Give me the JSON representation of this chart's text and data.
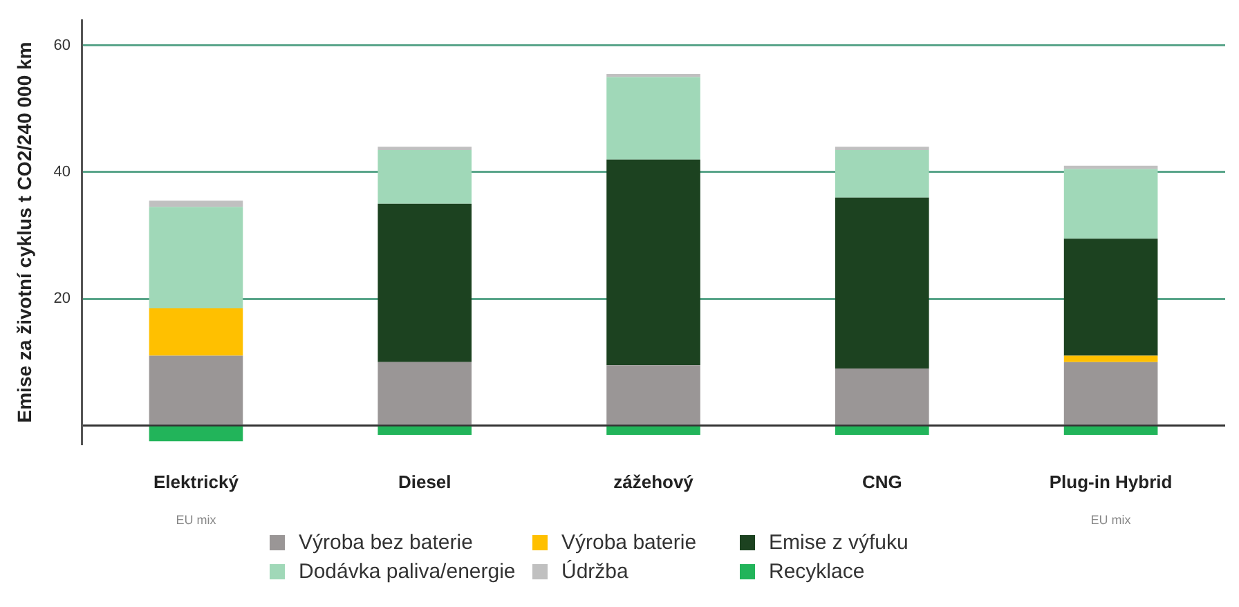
{
  "chart_data": {
    "type": "bar",
    "stacked": true,
    "ylabel": "Emise za životní cyklus t CO2/240 000 km",
    "categories": [
      "Elektrický",
      "Diesel",
      "zážehový",
      "CNG",
      "Plug-in Hybrid"
    ],
    "series": [
      {
        "name": "Výroba bez baterie",
        "color": "#9a9696",
        "values": [
          11,
          10,
          9.5,
          9,
          10
        ]
      },
      {
        "name": "Výroba baterie",
        "color": "#ffc000",
        "values": [
          7.5,
          0,
          0,
          0,
          1
        ]
      },
      {
        "name": "Emise z výfuku",
        "color": "#1c4220",
        "values": [
          0,
          25,
          32.5,
          27,
          18.5
        ]
      },
      {
        "name": "Dodávka paliva/energie",
        "color": "#a0d8b8",
        "values": [
          16,
          8.5,
          13,
          7.5,
          11
        ]
      },
      {
        "name": "Údržba",
        "color": "#c0c0c0",
        "values": [
          1,
          0.5,
          0.5,
          0.5,
          0.5
        ]
      },
      {
        "name": "Recyklace",
        "color": "#22b45a",
        "values": [
          -2.5,
          -1.5,
          -1.5,
          -1.5,
          -1.5
        ]
      }
    ],
    "ylim": [
      -3,
      64
    ],
    "yticks": [
      {
        "value": 0,
        "label": null
      },
      20,
      40,
      60
    ],
    "grid": "y",
    "legend": "bottom",
    "annotations": [
      "EU mix",
      "EU mix"
    ]
  }
}
